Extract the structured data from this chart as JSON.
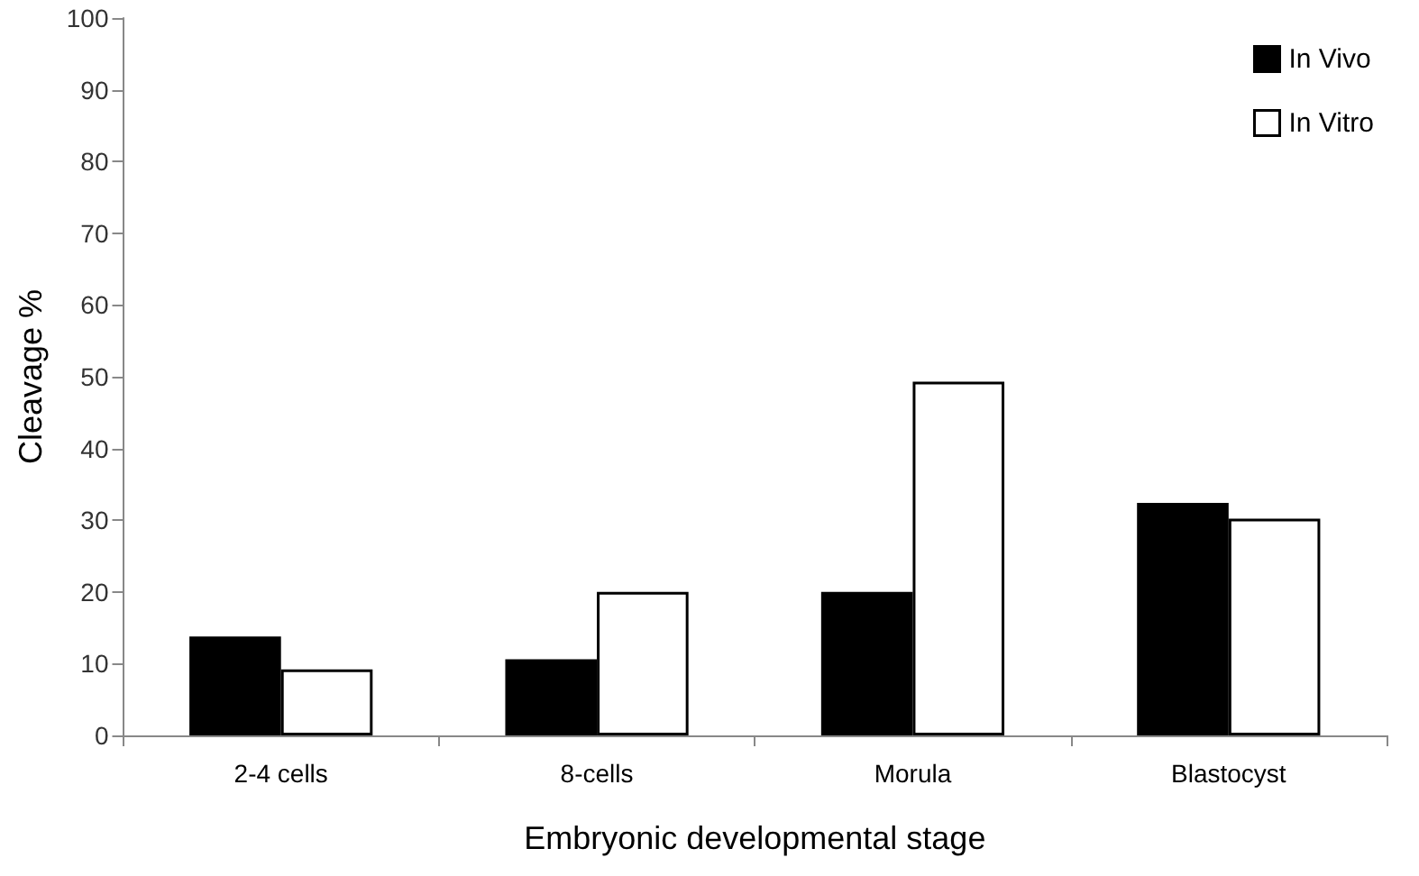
{
  "chart_data": {
    "type": "bar",
    "xlabel": "Embryonic developmental stage",
    "ylabel": "Cleavage %",
    "categories": [
      "2-4 cells",
      "8-cells",
      "Morula",
      "Blastocyst"
    ],
    "series": [
      {
        "name": "In Vivo",
        "color": "#000000",
        "values": [
          13.8,
          10.6,
          20,
          32.4
        ]
      },
      {
        "name": "In Vitro",
        "color": "#ffffff",
        "values": [
          9.2,
          20,
          49.3,
          30.2
        ]
      }
    ],
    "ylim": [
      0,
      100
    ],
    "yticks": [
      0,
      10,
      20,
      30,
      40,
      50,
      60,
      70,
      80,
      90,
      100
    ],
    "grid": false,
    "legend": "top right"
  }
}
